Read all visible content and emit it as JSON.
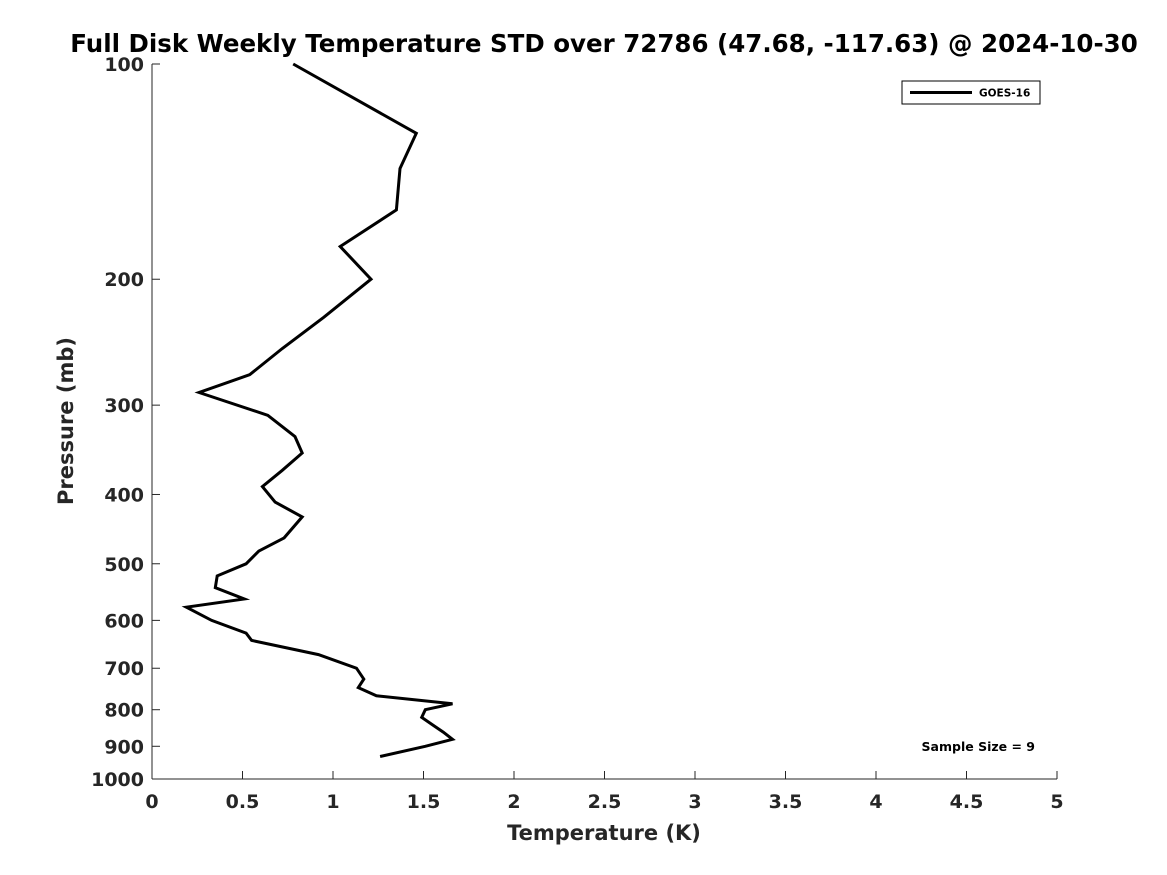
{
  "chart_data": {
    "type": "line",
    "title": "Full Disk Weekly Temperature STD over 72786 (47.68, -117.63) @ 2024-10-30",
    "xlabel": "Temperature (K)",
    "ylabel": "Pressure (mb)",
    "xlim": [
      0,
      5
    ],
    "ylim": [
      100,
      1000
    ],
    "y_scale": "log",
    "y_reversed": true,
    "x_ticks": [
      0,
      0.5,
      1,
      1.5,
      2,
      2.5,
      3,
      3.5,
      4,
      4.5,
      5
    ],
    "x_tick_labels": [
      "0",
      "0.5",
      "1",
      "1.5",
      "2",
      "2.5",
      "3",
      "3.5",
      "4",
      "4.5",
      "5"
    ],
    "y_ticks": [
      100,
      200,
      300,
      400,
      500,
      600,
      700,
      800,
      900,
      1000
    ],
    "y_tick_labels": [
      "100",
      "200",
      "300",
      "400",
      "500",
      "600",
      "700",
      "800",
      "900",
      "1000"
    ],
    "grid": false,
    "legend_position": "top-right",
    "annotation": "Sample Size = 9",
    "series": [
      {
        "name": "GOES-16",
        "color": "#000000",
        "x": [
          0.78,
          1.46,
          1.37,
          1.35,
          1.04,
          1.21,
          0.95,
          0.72,
          0.54,
          0.26,
          0.64,
          0.79,
          0.83,
          0.72,
          0.61,
          0.68,
          0.83,
          0.73,
          0.59,
          0.52,
          0.36,
          0.35,
          0.51,
          0.19,
          0.33,
          0.52,
          0.55,
          0.92,
          1.13,
          1.17,
          1.14,
          1.24,
          1.66,
          1.51,
          1.49,
          1.55,
          1.61,
          1.66,
          1.51,
          1.26
        ],
        "y": [
          100,
          125,
          140,
          160,
          180,
          200,
          226,
          250,
          272,
          288,
          310,
          332,
          350,
          370,
          390,
          410,
          430,
          460,
          480,
          500,
          520,
          540,
          560,
          575,
          600,
          625,
          640,
          670,
          700,
          725,
          745,
          765,
          785,
          800,
          820,
          840,
          860,
          880,
          900,
          930
        ]
      }
    ]
  }
}
